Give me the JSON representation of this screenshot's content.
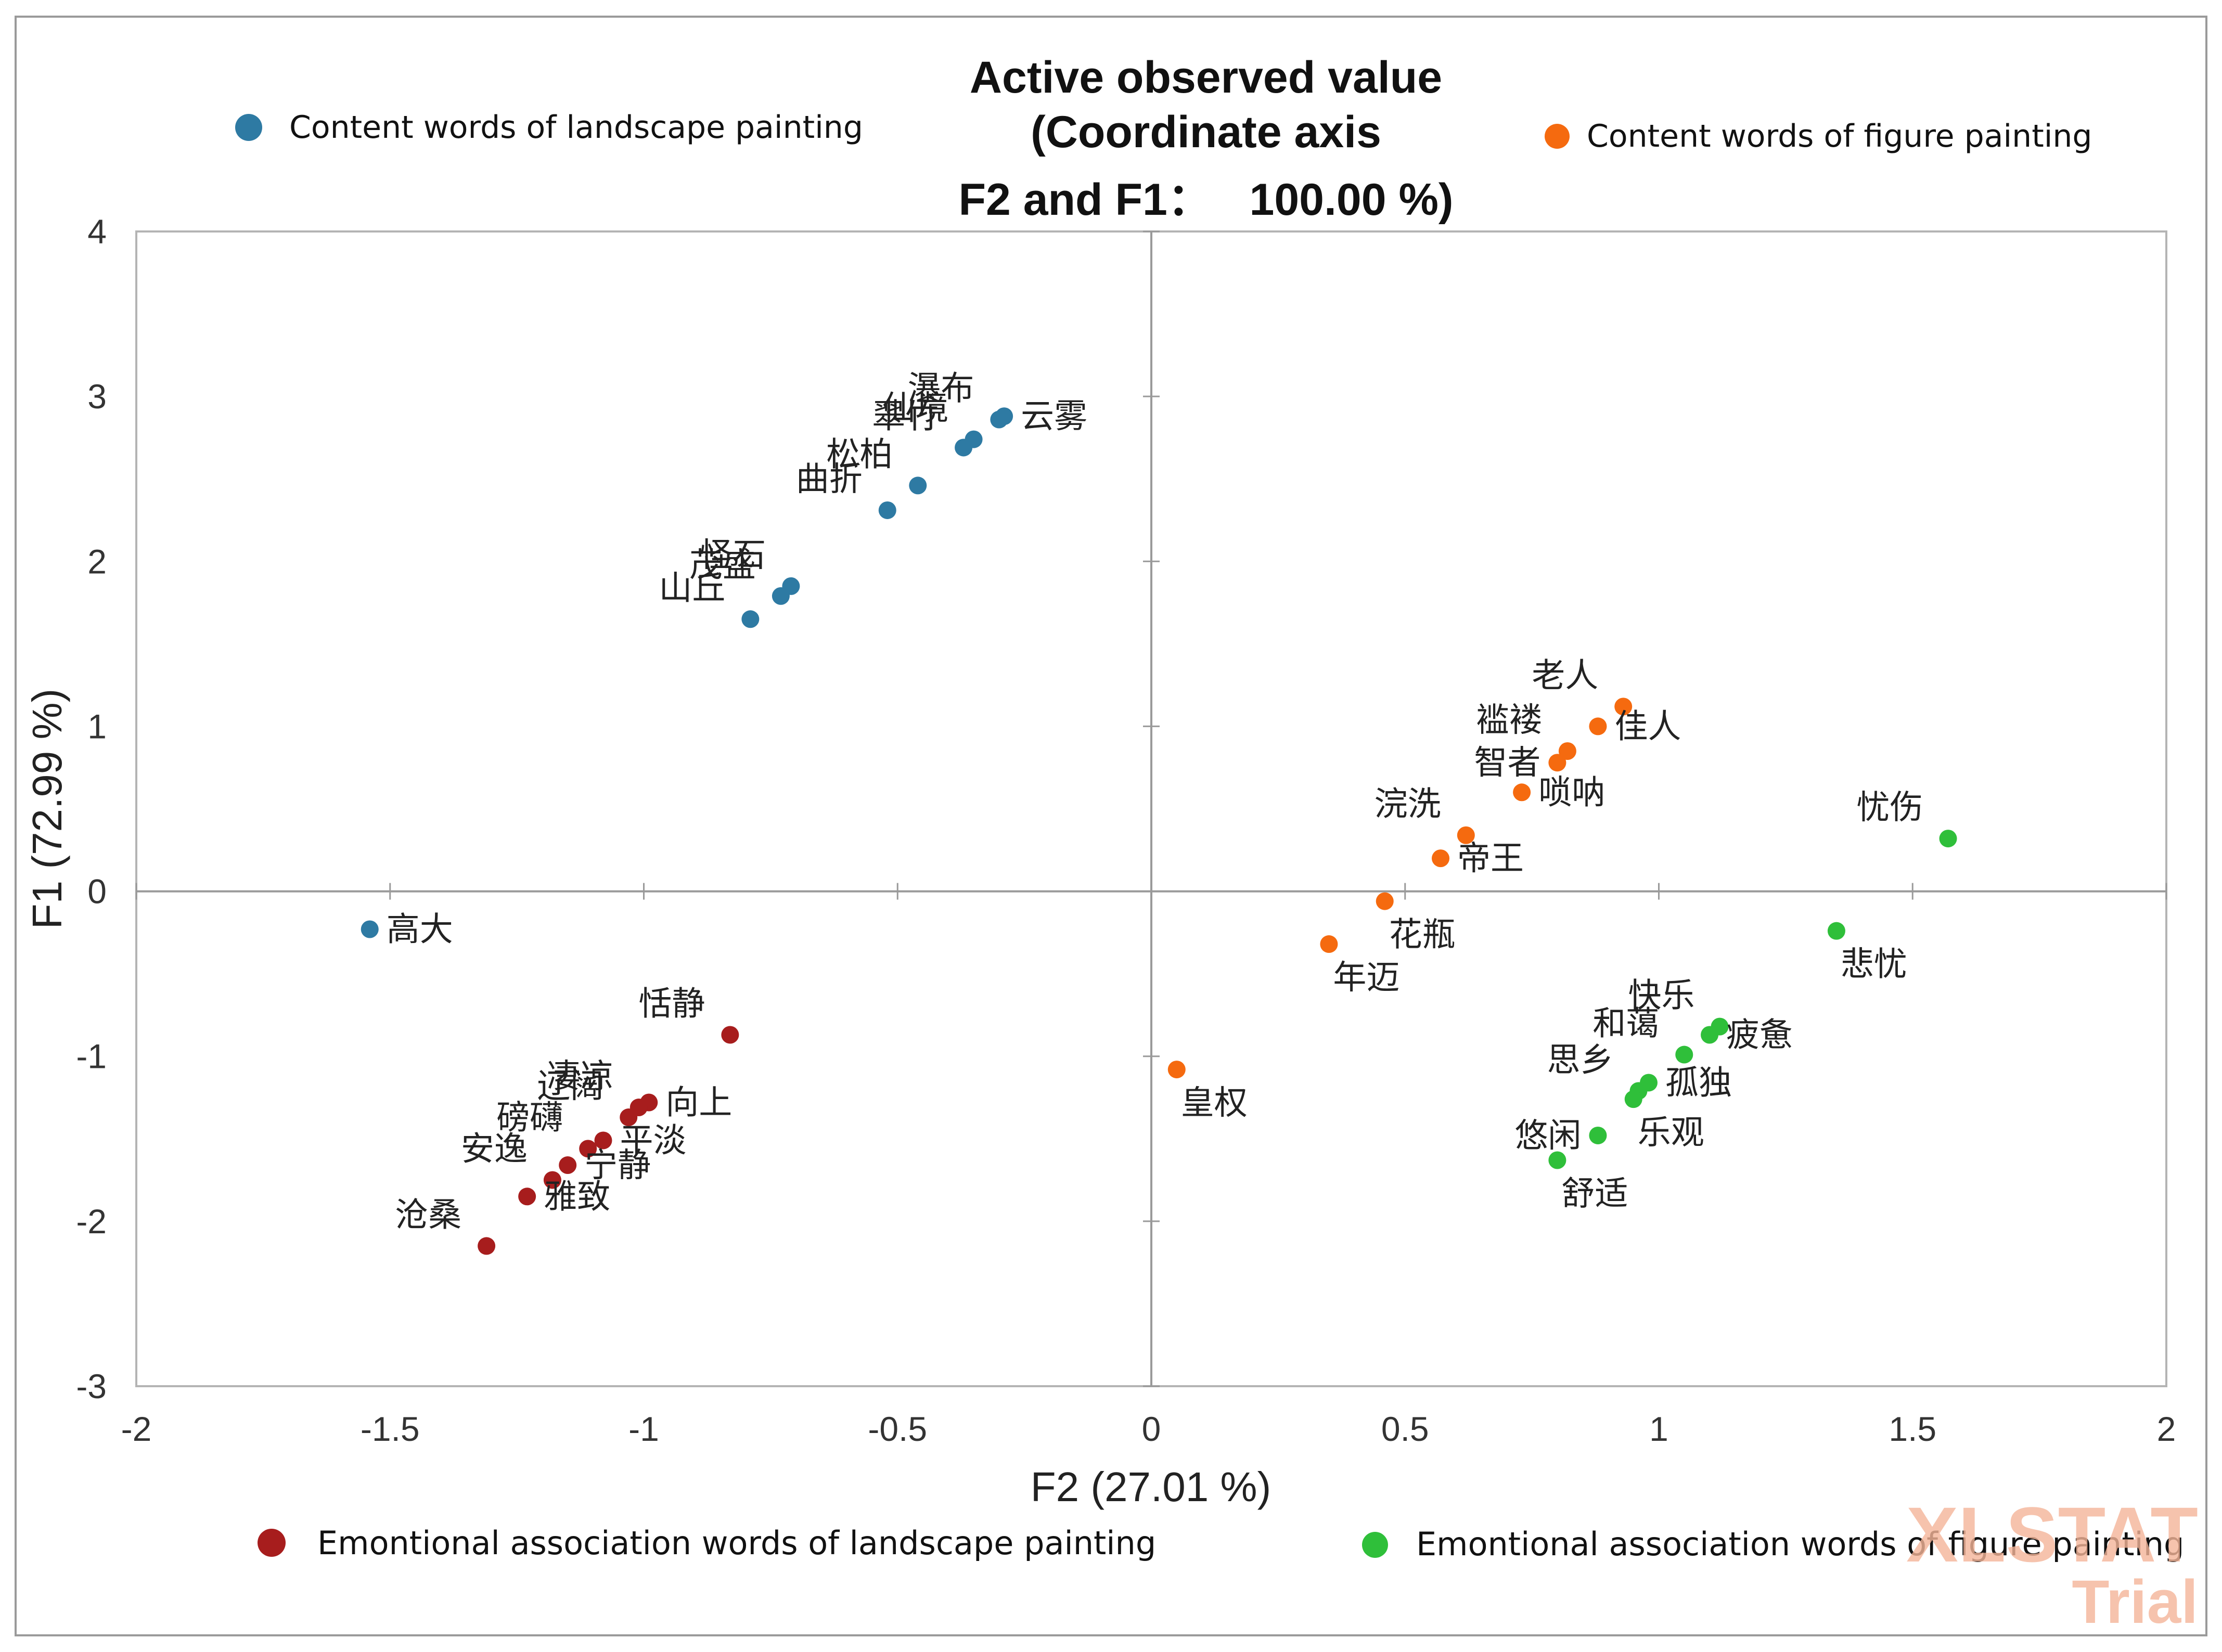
{
  "chart_data": {
    "type": "scatter",
    "title_lines": [
      "Active observed value",
      "(Coordinate axis",
      "F2 and F1：   100.00 %)"
    ],
    "xlabel": "F2 (27.01 %)",
    "ylabel": "F1 (72.99 %)",
    "xlim": [
      -2,
      2
    ],
    "ylim": [
      -3,
      4
    ],
    "x_ticks": [
      -2,
      -1.5,
      -1,
      -0.5,
      0,
      0.5,
      1,
      1.5,
      2
    ],
    "y_ticks": [
      4,
      3,
      2,
      1,
      0,
      -1,
      -2,
      -3
    ],
    "x_tick_labels": [
      "-2",
      "-1.5",
      "-1",
      "-0.5",
      "0",
      "0.5",
      "1",
      "1.5",
      "2"
    ],
    "y_tick_labels": [
      "4",
      "3",
      "2",
      "1",
      "0",
      "-1",
      "-2",
      "-3"
    ],
    "series": [
      {
        "name": "Content words of landscape painting",
        "color": "#2e7aa3",
        "points": [
          {
            "x": -0.29,
            "y": 2.88,
            "label": "云雾",
            "anchor": "right"
          },
          {
            "x": -0.3,
            "y": 2.86,
            "label": "瀑布",
            "anchor": "above"
          },
          {
            "x": -0.35,
            "y": 2.74,
            "label": "仙境",
            "anchor": "above"
          },
          {
            "x": -0.37,
            "y": 2.69,
            "label": "翠竹",
            "anchor": "above"
          },
          {
            "x": -0.46,
            "y": 2.46,
            "label": "松柏",
            "anchor": "above"
          },
          {
            "x": -0.52,
            "y": 2.31,
            "label": "曲折",
            "anchor": "above"
          },
          {
            "x": -0.71,
            "y": 1.85,
            "label": "怪石",
            "anchor": "above"
          },
          {
            "x": -0.73,
            "y": 1.79,
            "label": "茂盛",
            "anchor": "above"
          },
          {
            "x": -0.79,
            "y": 1.65,
            "label": "山丘",
            "anchor": "above"
          },
          {
            "x": -1.54,
            "y": -0.23,
            "label": "高大",
            "anchor": "right"
          }
        ]
      },
      {
        "name": "Content words of figure painting",
        "color": "#f56a0f",
        "points": [
          {
            "x": 0.93,
            "y": 1.12,
            "label": "老人",
            "anchor": "above"
          },
          {
            "x": 0.88,
            "y": 1.0,
            "label": "佳人",
            "anchor": "right"
          },
          {
            "x": 0.82,
            "y": 0.85,
            "label": "褴褛",
            "anchor": "above"
          },
          {
            "x": 0.8,
            "y": 0.78,
            "label": "智者",
            "anchor": "left"
          },
          {
            "x": 0.73,
            "y": 0.6,
            "label": "唢呐",
            "anchor": "right"
          },
          {
            "x": 0.62,
            "y": 0.34,
            "label": "浣洗",
            "anchor": "above"
          },
          {
            "x": 0.57,
            "y": 0.2,
            "label": "帝王",
            "anchor": "right"
          },
          {
            "x": 0.46,
            "y": -0.06,
            "label": "花瓶",
            "anchor": "below"
          },
          {
            "x": 0.35,
            "y": -0.32,
            "label": "年迈",
            "anchor": "below"
          },
          {
            "x": 0.05,
            "y": -1.08,
            "label": "皇权",
            "anchor": "below"
          }
        ]
      },
      {
        "name": "Emontional association words of landscape painting",
        "color": "#a71d1d",
        "points": [
          {
            "x": -0.83,
            "y": -0.87,
            "label": "恬静",
            "anchor": "above"
          },
          {
            "x": -0.99,
            "y": -1.28,
            "label": "向上",
            "anchor": "right"
          },
          {
            "x": -1.01,
            "y": -1.31,
            "label": "凄凉",
            "anchor": "above"
          },
          {
            "x": -1.03,
            "y": -1.37,
            "label": "辽阔",
            "anchor": "above"
          },
          {
            "x": -1.08,
            "y": -1.51,
            "label": "平淡",
            "anchor": "right"
          },
          {
            "x": -1.11,
            "y": -1.56,
            "label": "磅礴",
            "anchor": "above"
          },
          {
            "x": -1.15,
            "y": -1.66,
            "label": "宁静",
            "anchor": "right"
          },
          {
            "x": -1.18,
            "y": -1.75,
            "label": "安逸",
            "anchor": "above"
          },
          {
            "x": -1.23,
            "y": -1.85,
            "label": "雅致",
            "anchor": "right"
          },
          {
            "x": -1.31,
            "y": -2.15,
            "label": "沧桑",
            "anchor": "above"
          }
        ]
      },
      {
        "name": "Emontional association words of figure painting",
        "color": "#2fbf3a",
        "points": [
          {
            "x": 1.57,
            "y": 0.32,
            "label": "忧伤",
            "anchor": "above"
          },
          {
            "x": 1.35,
            "y": -0.24,
            "label": "悲忧",
            "anchor": "below"
          },
          {
            "x": 1.12,
            "y": -0.82,
            "label": "快乐",
            "anchor": "above"
          },
          {
            "x": 1.1,
            "y": -0.87,
            "label": "疲惫",
            "anchor": "right"
          },
          {
            "x": 1.05,
            "y": -0.99,
            "label": "和蔼",
            "anchor": "above"
          },
          {
            "x": 0.98,
            "y": -1.16,
            "label": "孤独",
            "anchor": "right"
          },
          {
            "x": 0.96,
            "y": -1.21,
            "label": "思乡",
            "anchor": "above"
          },
          {
            "x": 0.95,
            "y": -1.26,
            "label": "乐观",
            "anchor": "below"
          },
          {
            "x": 0.88,
            "y": -1.48,
            "label": "悠闲",
            "anchor": "left"
          },
          {
            "x": 0.8,
            "y": -1.63,
            "label": "舒适",
            "anchor": "below"
          }
        ]
      }
    ],
    "legend": [
      {
        "label": "Content words of landscape painting",
        "color": "#2e7aa3",
        "position": "top-left"
      },
      {
        "label": "Content words of figure painting",
        "color": "#f56a0f",
        "position": "top-right"
      },
      {
        "label": "Emontional association words of landscape painting",
        "color": "#a71d1d",
        "position": "bottom-left"
      },
      {
        "label": "Emontional association words of figure painting",
        "color": "#2fbf3a",
        "position": "bottom-right"
      }
    ],
    "grid": false
  },
  "watermark": {
    "line1": "XLSTAT",
    "line2": "Trial"
  }
}
